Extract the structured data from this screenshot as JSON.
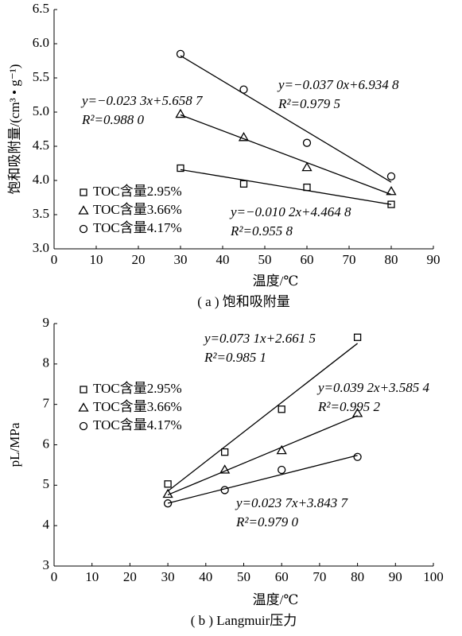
{
  "chart_data": [
    {
      "type": "scatter",
      "caption": "( a ) 饱和吸附量",
      "x_label": "温度/℃",
      "y_label": "饱和吸附量/(cm³ • g⁻¹)",
      "xlim": [
        0,
        90
      ],
      "xticks": [
        0,
        10,
        20,
        30,
        40,
        50,
        60,
        70,
        80,
        90
      ],
      "ylim": [
        3,
        6.5
      ],
      "yticks": [
        {
          "value": 3,
          "label": "3.0"
        },
        3.5,
        {
          "value": 4,
          "label": "4.0"
        },
        4.5,
        {
          "value": 5,
          "label": "5.0"
        },
        5.5,
        {
          "value": 6,
          "label": "6.0"
        },
        6.5
      ],
      "legend": "lower left",
      "x": [
        30,
        45,
        60,
        80
      ],
      "series": [
        {
          "name": "TOC含量2.95%",
          "marker": "square",
          "color": "#000000",
          "values": [
            4.18,
            3.95,
            3.9,
            3.65
          ],
          "fit": {
            "slope": -0.0102,
            "intercept": 4.4648,
            "r2": 0.9558
          },
          "fit_label": [
            "y=−0.010 2x+4.464 8",
            "R²=0.955 8"
          ]
        },
        {
          "name": "TOC含量3.66%",
          "marker": "triangle",
          "color": "#000000",
          "values": [
            4.97,
            4.63,
            4.19,
            3.84
          ],
          "fit": {
            "slope": -0.0233,
            "intercept": 5.6587,
            "r2": 0.988
          },
          "fit_label": [
            "y=−0.023 3x+5.658 7",
            "R²=0.988 0"
          ]
        },
        {
          "name": "TOC含量4.17%",
          "marker": "circle",
          "color": "#000000",
          "values": [
            5.85,
            5.33,
            4.55,
            4.06
          ],
          "fit": {
            "slope": -0.037,
            "intercept": 6.9348,
            "r2": 0.9795
          },
          "fit_label": [
            "y=−0.037 0x+6.934 8",
            "R²=0.979 5"
          ]
        }
      ]
    },
    {
      "type": "scatter",
      "caption": "( b ) Langmuir压力",
      "x_label": "温度/℃",
      "y_label": "pL/MPa",
      "xlim": [
        0,
        100
      ],
      "xticks": [
        0,
        10,
        20,
        30,
        40,
        50,
        60,
        70,
        80,
        90,
        100
      ],
      "ylim": [
        3,
        9
      ],
      "yticks": [
        3,
        4,
        5,
        6,
        7,
        8,
        9
      ],
      "legend": "upper left",
      "x": [
        30,
        45,
        60,
        80
      ],
      "series": [
        {
          "name": "TOC含量2.95%",
          "marker": "square",
          "color": "#000000",
          "values": [
            5.03,
            5.82,
            6.88,
            8.66
          ],
          "fit": {
            "slope": 0.0731,
            "intercept": 2.6615,
            "r2": 0.9851
          },
          "fit_label": [
            "y=0.073 1x+2.661 5",
            "R²=0.985 1"
          ]
        },
        {
          "name": "TOC含量3.66%",
          "marker": "triangle",
          "color": "#000000",
          "values": [
            4.78,
            5.38,
            5.86,
            6.78
          ],
          "fit": {
            "slope": 0.0392,
            "intercept": 3.5854,
            "r2": 0.9952
          },
          "fit_label": [
            "y=0.039 2x+3.585 4",
            "R²=0.995 2"
          ]
        },
        {
          "name": "TOC含量4.17%",
          "marker": "circle",
          "color": "#000000",
          "values": [
            4.55,
            4.88,
            5.38,
            5.7
          ],
          "fit": {
            "slope": 0.0237,
            "intercept": 3.8437,
            "r2": 0.979
          },
          "fit_label": [
            "y=0.023 7x+3.843 7",
            "R²=0.979 0"
          ]
        }
      ]
    }
  ]
}
